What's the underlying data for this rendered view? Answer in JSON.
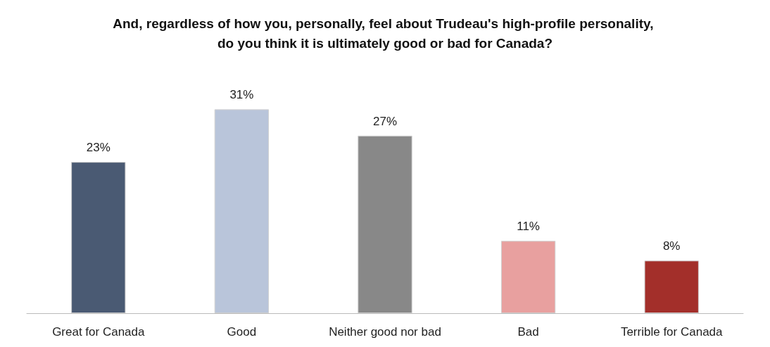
{
  "chart_data": {
    "type": "bar",
    "title": "And, regardless of how you, personally, feel about Trudeau's high-profile personality, do you think it is ultimately good or bad for Canada?",
    "categories": [
      "Great for Canada",
      "Good",
      "Neither good nor bad",
      "Bad",
      "Terrible for Canada"
    ],
    "values": [
      23,
      31,
      27,
      11,
      8
    ],
    "value_labels": [
      "23%",
      "31%",
      "27%",
      "11%",
      "8%"
    ],
    "colors": [
      "#4a5a73",
      "#b9c5da",
      "#888888",
      "#e8a09f",
      "#a32f2a"
    ]
  }
}
